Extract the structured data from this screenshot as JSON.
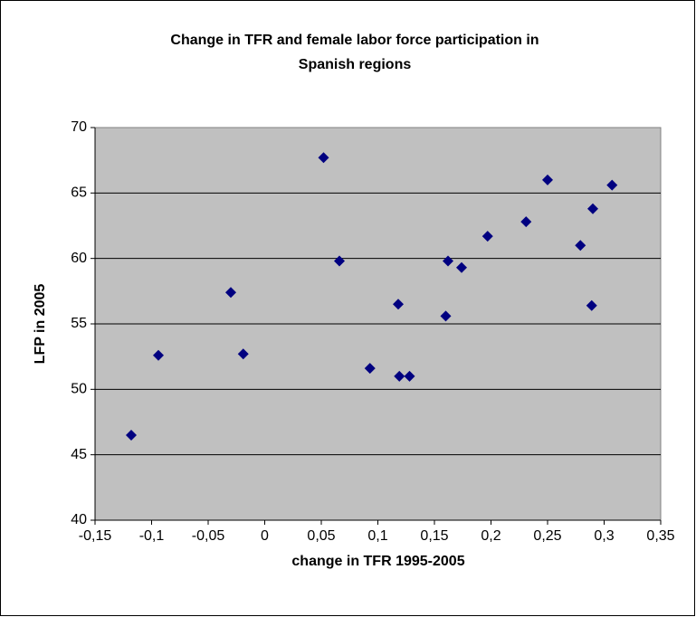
{
  "chart_data": {
    "type": "scatter",
    "title": [
      "Change in TFR  and female labor force participation in",
      "Spanish regions"
    ],
    "x_label": "change in TFR 1995-2005",
    "y_label": "LFP in 2005",
    "color": "#000080",
    "grid": true,
    "series": [
      {
        "x": [
          -0.118,
          -0.094,
          -0.03,
          -0.019,
          0.052,
          0.066,
          0.093,
          0.118,
          0.119,
          0.128,
          0.162,
          0.174,
          0.16,
          0.197,
          0.231,
          0.25,
          0.279,
          0.29,
          0.289,
          0.307
        ],
        "values": [
          46.5,
          52.6,
          57.4,
          52.7,
          67.7,
          59.8,
          51.6,
          56.5,
          51.0,
          51.0,
          59.8,
          59.3,
          55.6,
          61.7,
          62.8,
          66.0,
          61.0,
          63.8,
          56.4,
          65.6
        ]
      }
    ],
    "xlim": [
      -0.15,
      0.35
    ],
    "xticks": [
      {
        "value": -0.15,
        "label": "-0,15"
      },
      {
        "value": -0.1,
        "label": "-0,1"
      },
      {
        "value": -0.05,
        "label": "-0,05"
      },
      0,
      {
        "value": 0.05,
        "label": "0,05"
      },
      {
        "value": 0.1,
        "label": "0,1"
      },
      {
        "value": 0.15,
        "label": "0,15"
      },
      {
        "value": 0.2,
        "label": "0,2"
      },
      {
        "value": 0.25,
        "label": "0,25"
      },
      {
        "value": 0.3,
        "label": "0,3"
      },
      {
        "value": 0.35,
        "label": "0,35"
      }
    ],
    "ylim": [
      40,
      70
    ],
    "yticks": [
      40,
      45,
      50,
      55,
      60,
      65,
      70
    ]
  }
}
